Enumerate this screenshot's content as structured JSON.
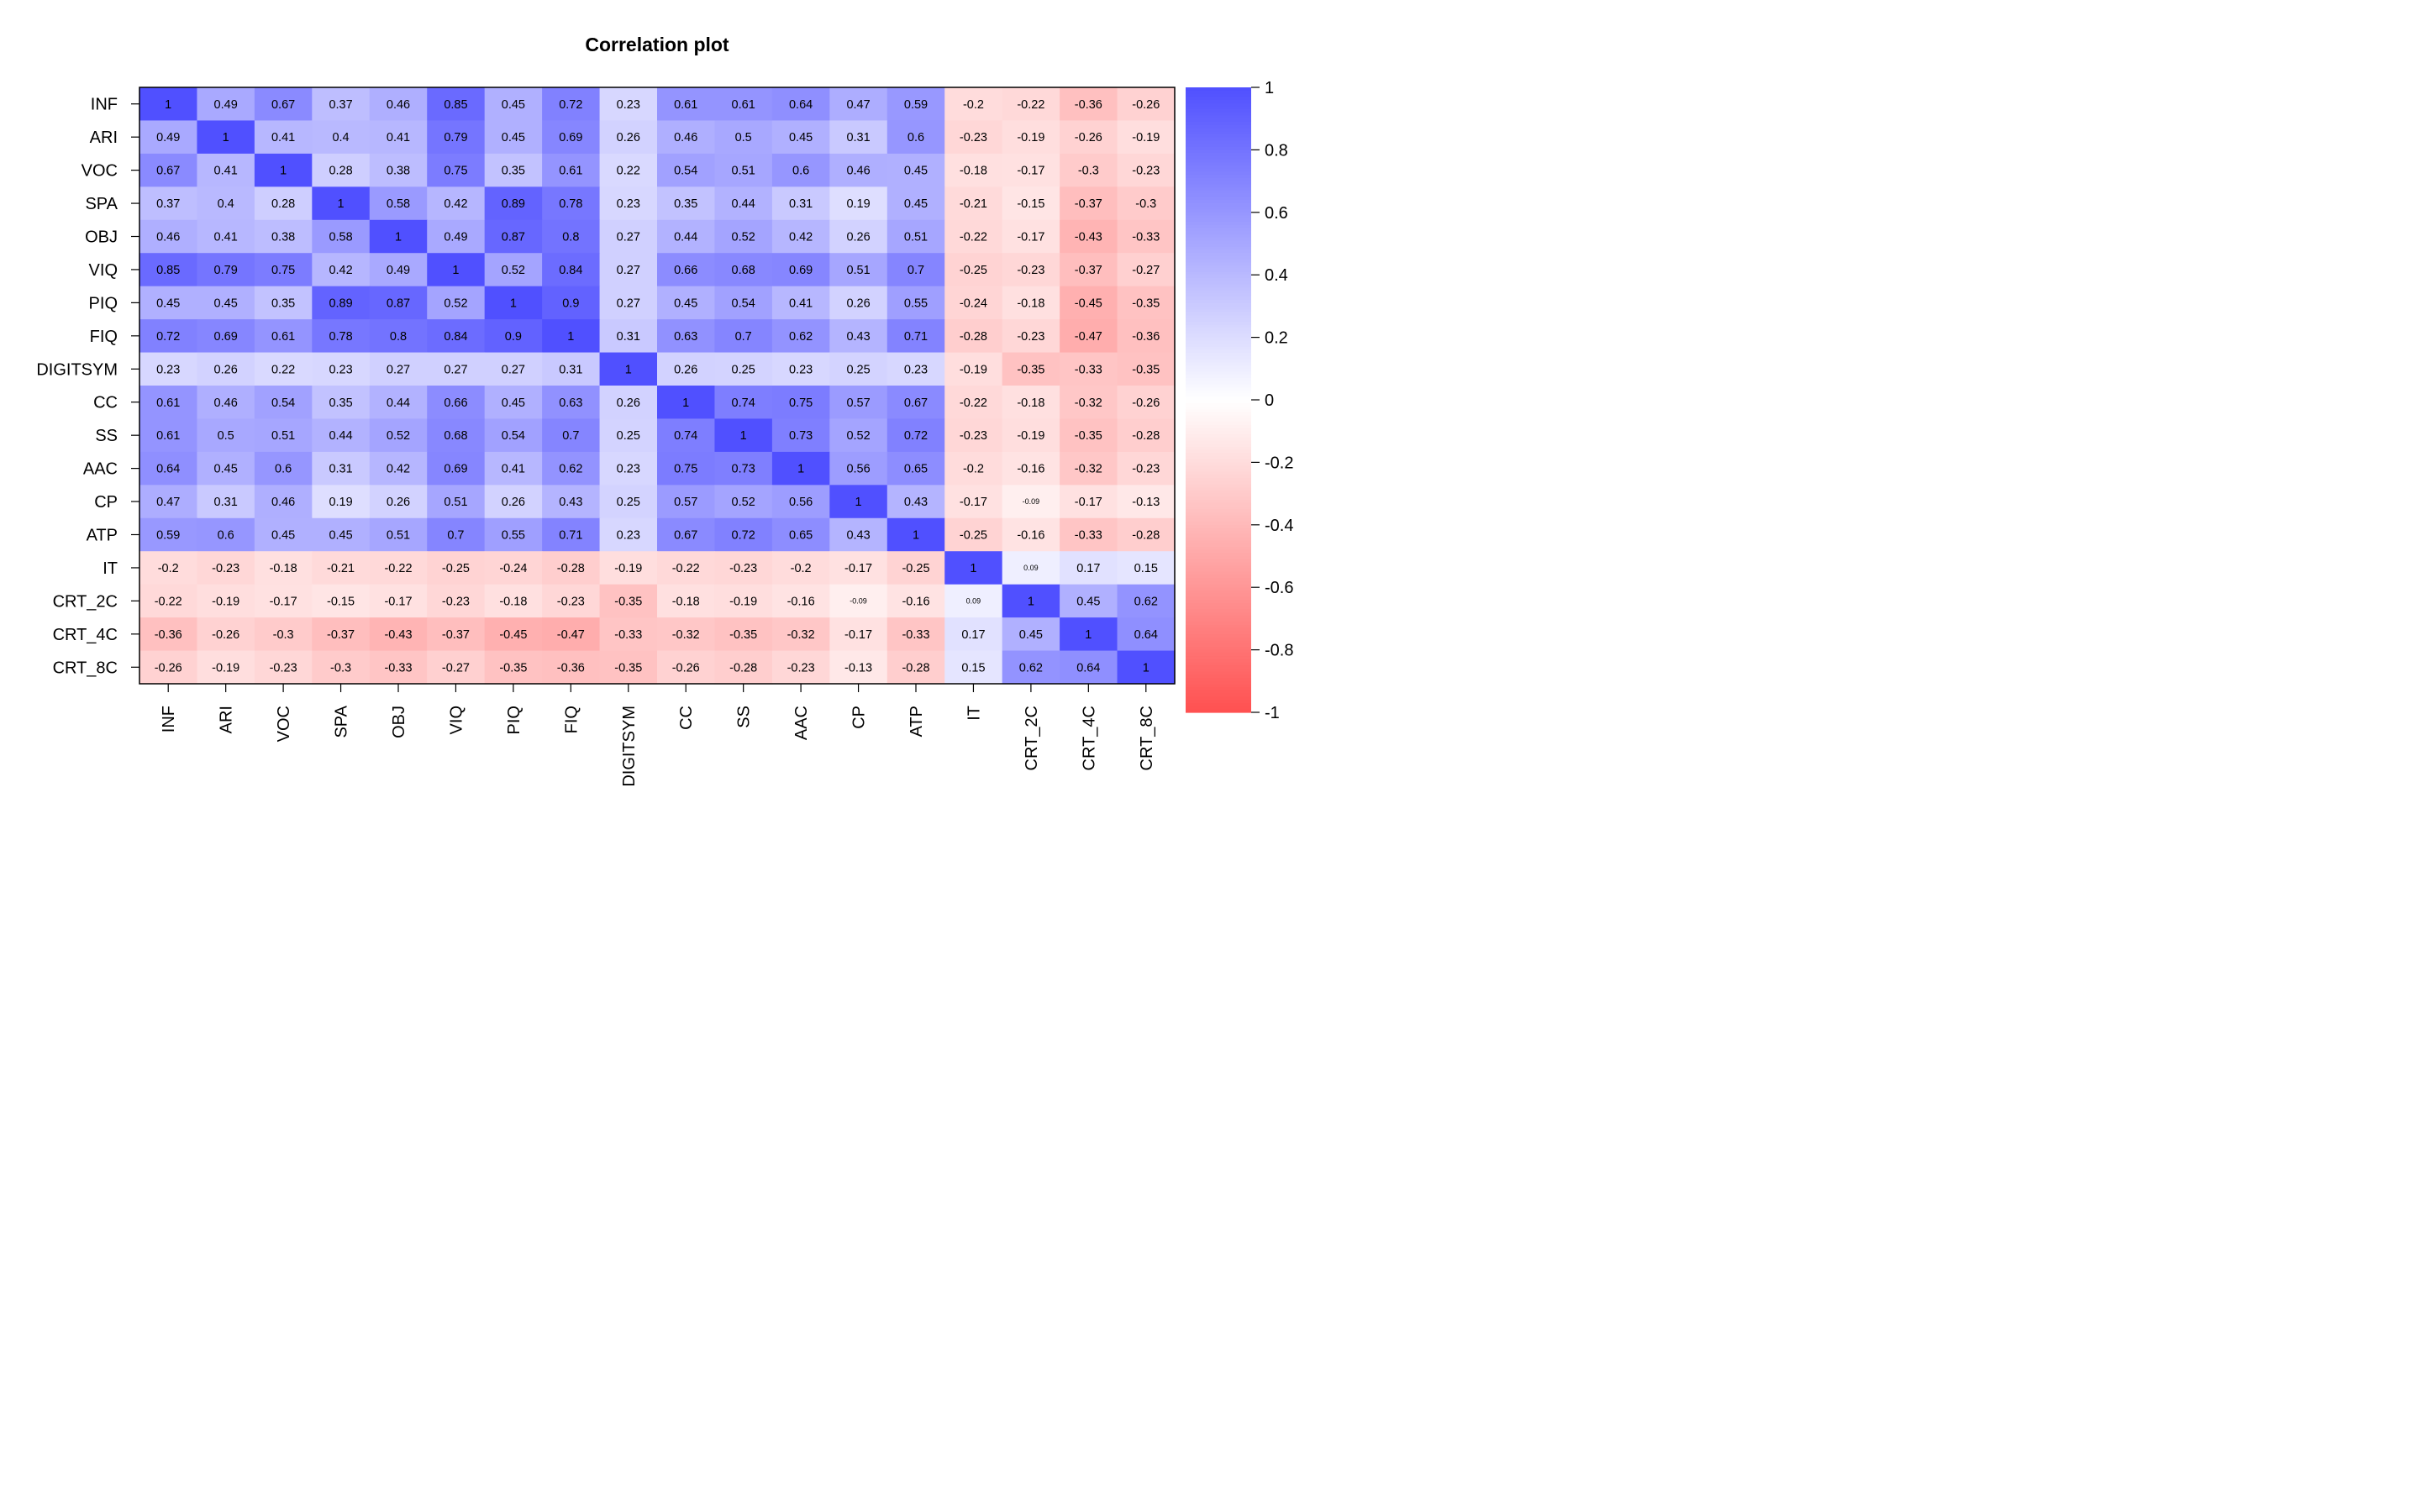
{
  "chart_data": {
    "type": "heatmap",
    "title": "Correlation plot",
    "variables": [
      "INF",
      "ARI",
      "VOC",
      "SPA",
      "OBJ",
      "VIQ",
      "PIQ",
      "FIQ",
      "DIGITSYM",
      "CC",
      "SS",
      "AAC",
      "CP",
      "ATP",
      "IT",
      "CRT_2C",
      "CRT_4C",
      "CRT_8C"
    ],
    "values": [
      [
        1,
        0.49,
        0.67,
        0.37,
        0.46,
        0.85,
        0.45,
        0.72,
        0.23,
        0.61,
        0.61,
        0.64,
        0.47,
        0.59,
        -0.2,
        -0.22,
        -0.36,
        -0.26
      ],
      [
        0.49,
        1,
        0.41,
        0.4,
        0.41,
        0.79,
        0.45,
        0.69,
        0.26,
        0.46,
        0.5,
        0.45,
        0.31,
        0.6,
        -0.23,
        -0.19,
        -0.26,
        -0.19
      ],
      [
        0.67,
        0.41,
        1,
        0.28,
        0.38,
        0.75,
        0.35,
        0.61,
        0.22,
        0.54,
        0.51,
        0.6,
        0.46,
        0.45,
        -0.18,
        -0.17,
        -0.3,
        -0.23
      ],
      [
        0.37,
        0.4,
        0.28,
        1,
        0.58,
        0.42,
        0.89,
        0.78,
        0.23,
        0.35,
        0.44,
        0.31,
        0.19,
        0.45,
        -0.21,
        -0.15,
        -0.37,
        -0.3
      ],
      [
        0.46,
        0.41,
        0.38,
        0.58,
        1,
        0.49,
        0.87,
        0.8,
        0.27,
        0.44,
        0.52,
        0.42,
        0.26,
        0.51,
        -0.22,
        -0.17,
        -0.43,
        -0.33
      ],
      [
        0.85,
        0.79,
        0.75,
        0.42,
        0.49,
        1,
        0.52,
        0.84,
        0.27,
        0.66,
        0.68,
        0.69,
        0.51,
        0.7,
        -0.25,
        -0.23,
        -0.37,
        -0.27
      ],
      [
        0.45,
        0.45,
        0.35,
        0.89,
        0.87,
        0.52,
        1,
        0.9,
        0.27,
        0.45,
        0.54,
        0.41,
        0.26,
        0.55,
        -0.24,
        -0.18,
        -0.45,
        -0.35
      ],
      [
        0.72,
        0.69,
        0.61,
        0.78,
        0.8,
        0.84,
        0.9,
        1,
        0.31,
        0.63,
        0.7,
        0.62,
        0.43,
        0.71,
        -0.28,
        -0.23,
        -0.47,
        -0.36
      ],
      [
        0.23,
        0.26,
        0.22,
        0.23,
        0.27,
        0.27,
        0.27,
        0.31,
        1,
        0.26,
        0.25,
        0.23,
        0.25,
        0.23,
        -0.19,
        -0.35,
        -0.33,
        -0.35
      ],
      [
        0.61,
        0.46,
        0.54,
        0.35,
        0.44,
        0.66,
        0.45,
        0.63,
        0.26,
        1,
        0.74,
        0.75,
        0.57,
        0.67,
        -0.22,
        -0.18,
        -0.32,
        -0.26
      ],
      [
        0.61,
        0.5,
        0.51,
        0.44,
        0.52,
        0.68,
        0.54,
        0.7,
        0.25,
        0.74,
        1,
        0.73,
        0.52,
        0.72,
        -0.23,
        -0.19,
        -0.35,
        -0.28
      ],
      [
        0.64,
        0.45,
        0.6,
        0.31,
        0.42,
        0.69,
        0.41,
        0.62,
        0.23,
        0.75,
        0.73,
        1,
        0.56,
        0.65,
        -0.2,
        -0.16,
        -0.32,
        -0.23
      ],
      [
        0.47,
        0.31,
        0.46,
        0.19,
        0.26,
        0.51,
        0.26,
        0.43,
        0.25,
        0.57,
        0.52,
        0.56,
        1,
        0.43,
        -0.17,
        -0.09,
        -0.17,
        -0.13
      ],
      [
        0.59,
        0.6,
        0.45,
        0.45,
        0.51,
        0.7,
        0.55,
        0.71,
        0.23,
        0.67,
        0.72,
        0.65,
        0.43,
        1,
        -0.25,
        -0.16,
        -0.33,
        -0.28
      ],
      [
        -0.2,
        -0.23,
        -0.18,
        -0.21,
        -0.22,
        -0.25,
        -0.24,
        -0.28,
        -0.19,
        -0.22,
        -0.23,
        -0.2,
        -0.17,
        -0.25,
        1,
        0.09,
        0.17,
        0.15
      ],
      [
        -0.22,
        -0.19,
        -0.17,
        -0.15,
        -0.17,
        -0.23,
        -0.18,
        -0.23,
        -0.35,
        -0.18,
        -0.19,
        -0.16,
        -0.09,
        -0.16,
        0.09,
        1,
        0.45,
        0.62
      ],
      [
        -0.36,
        -0.26,
        -0.3,
        -0.37,
        -0.43,
        -0.37,
        -0.45,
        -0.47,
        -0.33,
        -0.32,
        -0.35,
        -0.32,
        -0.17,
        -0.33,
        0.17,
        0.45,
        1,
        0.64
      ],
      [
        -0.26,
        -0.19,
        -0.23,
        -0.3,
        -0.33,
        -0.27,
        -0.35,
        -0.36,
        -0.35,
        -0.26,
        -0.28,
        -0.23,
        -0.13,
        -0.28,
        0.15,
        0.62,
        0.64,
        1
      ]
    ],
    "color_scale": {
      "min": -1,
      "max": 1,
      "negative_color": "#FF5050",
      "zero_color": "#FFFFFF",
      "positive_color": "#5050FF",
      "ticks": [
        1,
        0.8,
        0.6,
        0.4,
        0.2,
        0,
        -0.2,
        -0.4,
        -0.6,
        -0.8,
        -1
      ]
    },
    "legend": "right",
    "grid": false
  }
}
